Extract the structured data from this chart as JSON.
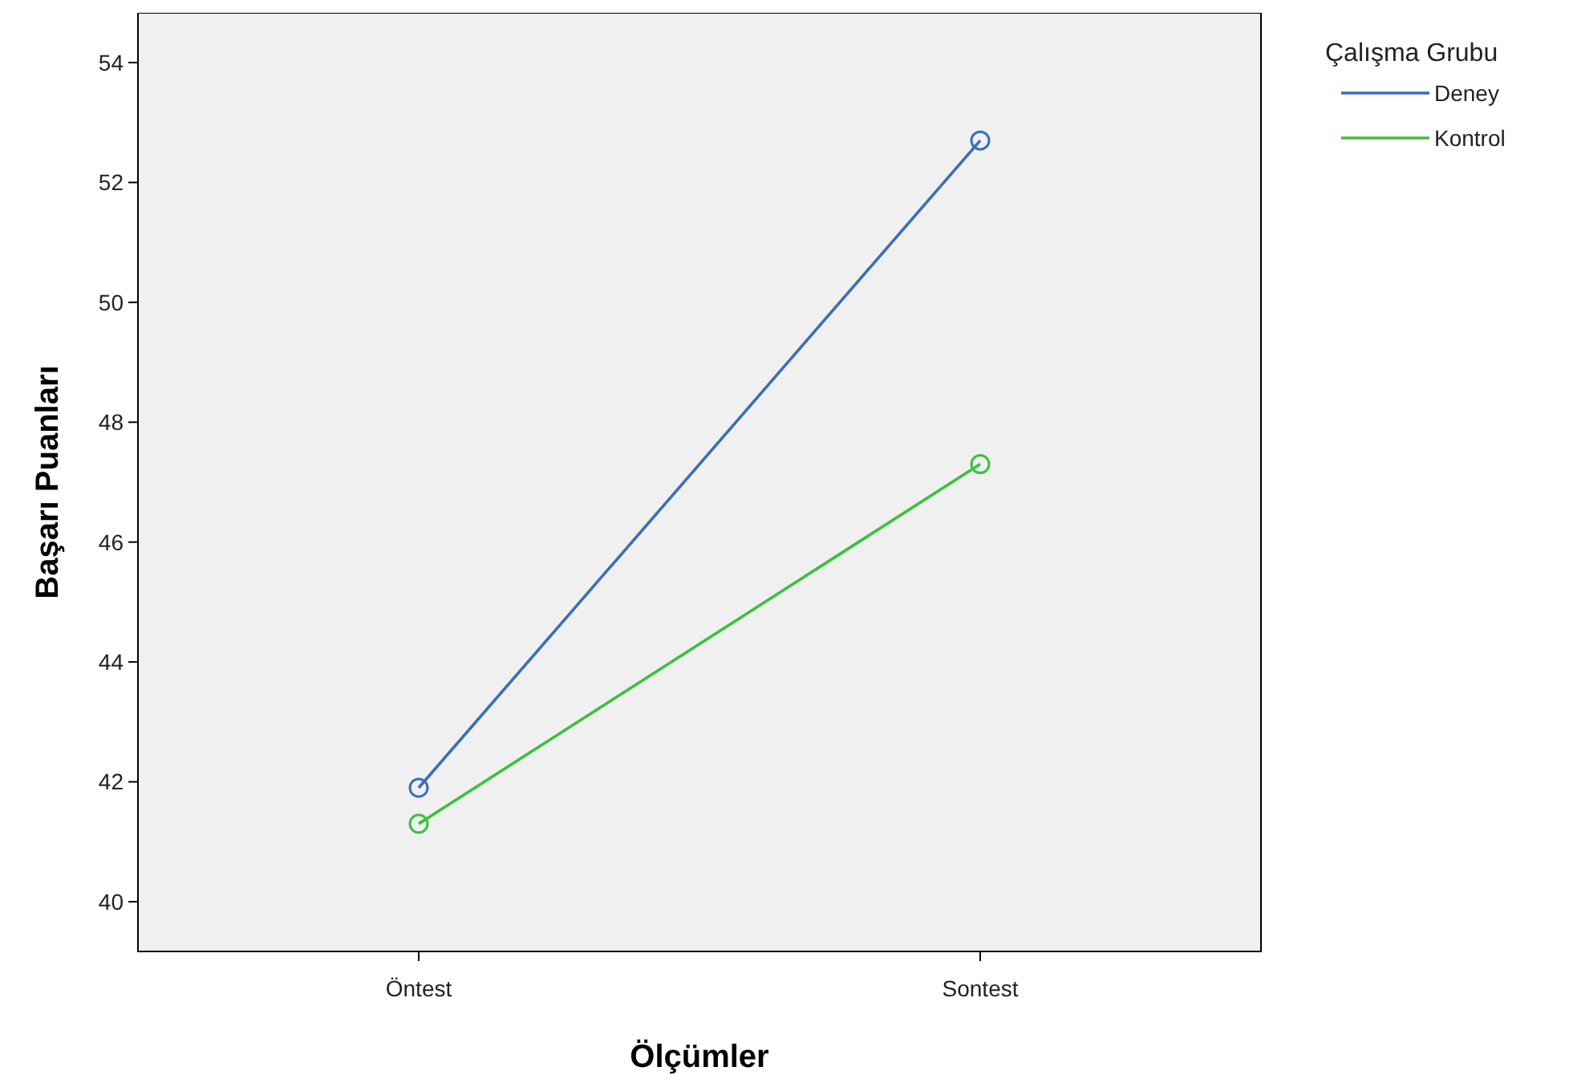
{
  "chart_data": {
    "type": "line",
    "xlabel": "Ölçümler",
    "ylabel": "Başarı Puanları",
    "legend_title": "Çalışma Grubu",
    "categories": [
      "Öntest",
      "Sontest"
    ],
    "series": [
      {
        "name": "Deney",
        "color": "#3b6fb6",
        "values": [
          41.9,
          52.7
        ]
      },
      {
        "name": "Kontrol",
        "color": "#3cc13c",
        "values": [
          41.3,
          47.3
        ]
      }
    ],
    "ylim": [
      39.17,
      54.83
    ],
    "yticks": [
      40,
      42,
      44,
      46,
      48,
      50,
      52,
      54
    ],
    "grid": false,
    "legend": "top right",
    "marker": "circle",
    "line_style": "solid"
  }
}
